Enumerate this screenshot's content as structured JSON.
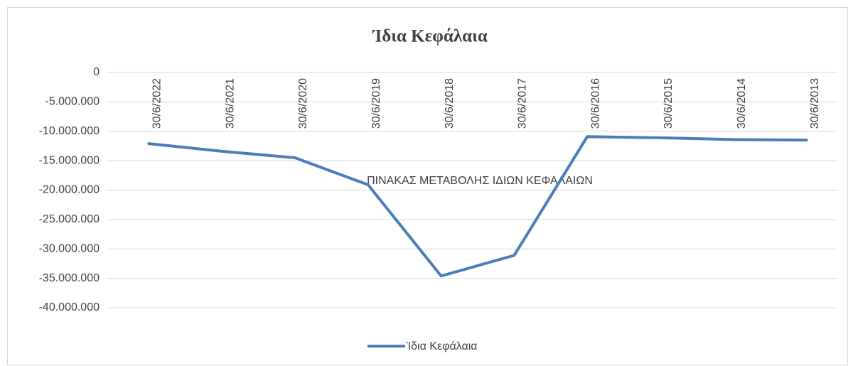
{
  "chart_data": {
    "type": "line",
    "title": "Ίδια Κεφάλαια",
    "annotation": "ΠΙΝΑΚΑΣ ΜΕΤΑΒΟΛΗΣ ΙΔΙΩΝ ΚΕΦΑΛΑΙΩΝ",
    "categories": [
      "30/6/2022",
      "30/6/2021",
      "30/6/2020",
      "30/6/2019",
      "30/6/2018",
      "30/6/2017",
      "30/6/2016",
      "30/6/2015",
      "30/6/2014",
      "30/6/2013"
    ],
    "series": [
      {
        "name": "Ίδια Κεφάλαια",
        "color": "#4a7ebb",
        "values": [
          -12100000,
          -13400000,
          -14500000,
          -19100000,
          -34600000,
          -31100000,
          -10900000,
          -11100000,
          -11400000,
          -11500000
        ]
      }
    ],
    "ylim": [
      -40000000,
      0
    ],
    "yticks": [
      0,
      {
        "value": -5000000,
        "label": "-5.000.000"
      },
      {
        "value": -10000000,
        "label": "-10.000.000"
      },
      {
        "value": -15000000,
        "label": "-15.000.000"
      },
      {
        "value": -20000000,
        "label": "-20.000.000"
      },
      {
        "value": -25000000,
        "label": "-25.000.000"
      },
      {
        "value": -30000000,
        "label": "-30.000.000"
      },
      {
        "value": -35000000,
        "label": "-35.000.000"
      },
      {
        "value": -40000000,
        "label": "-40.000.000"
      }
    ],
    "grid": true,
    "legend": "bottom"
  }
}
